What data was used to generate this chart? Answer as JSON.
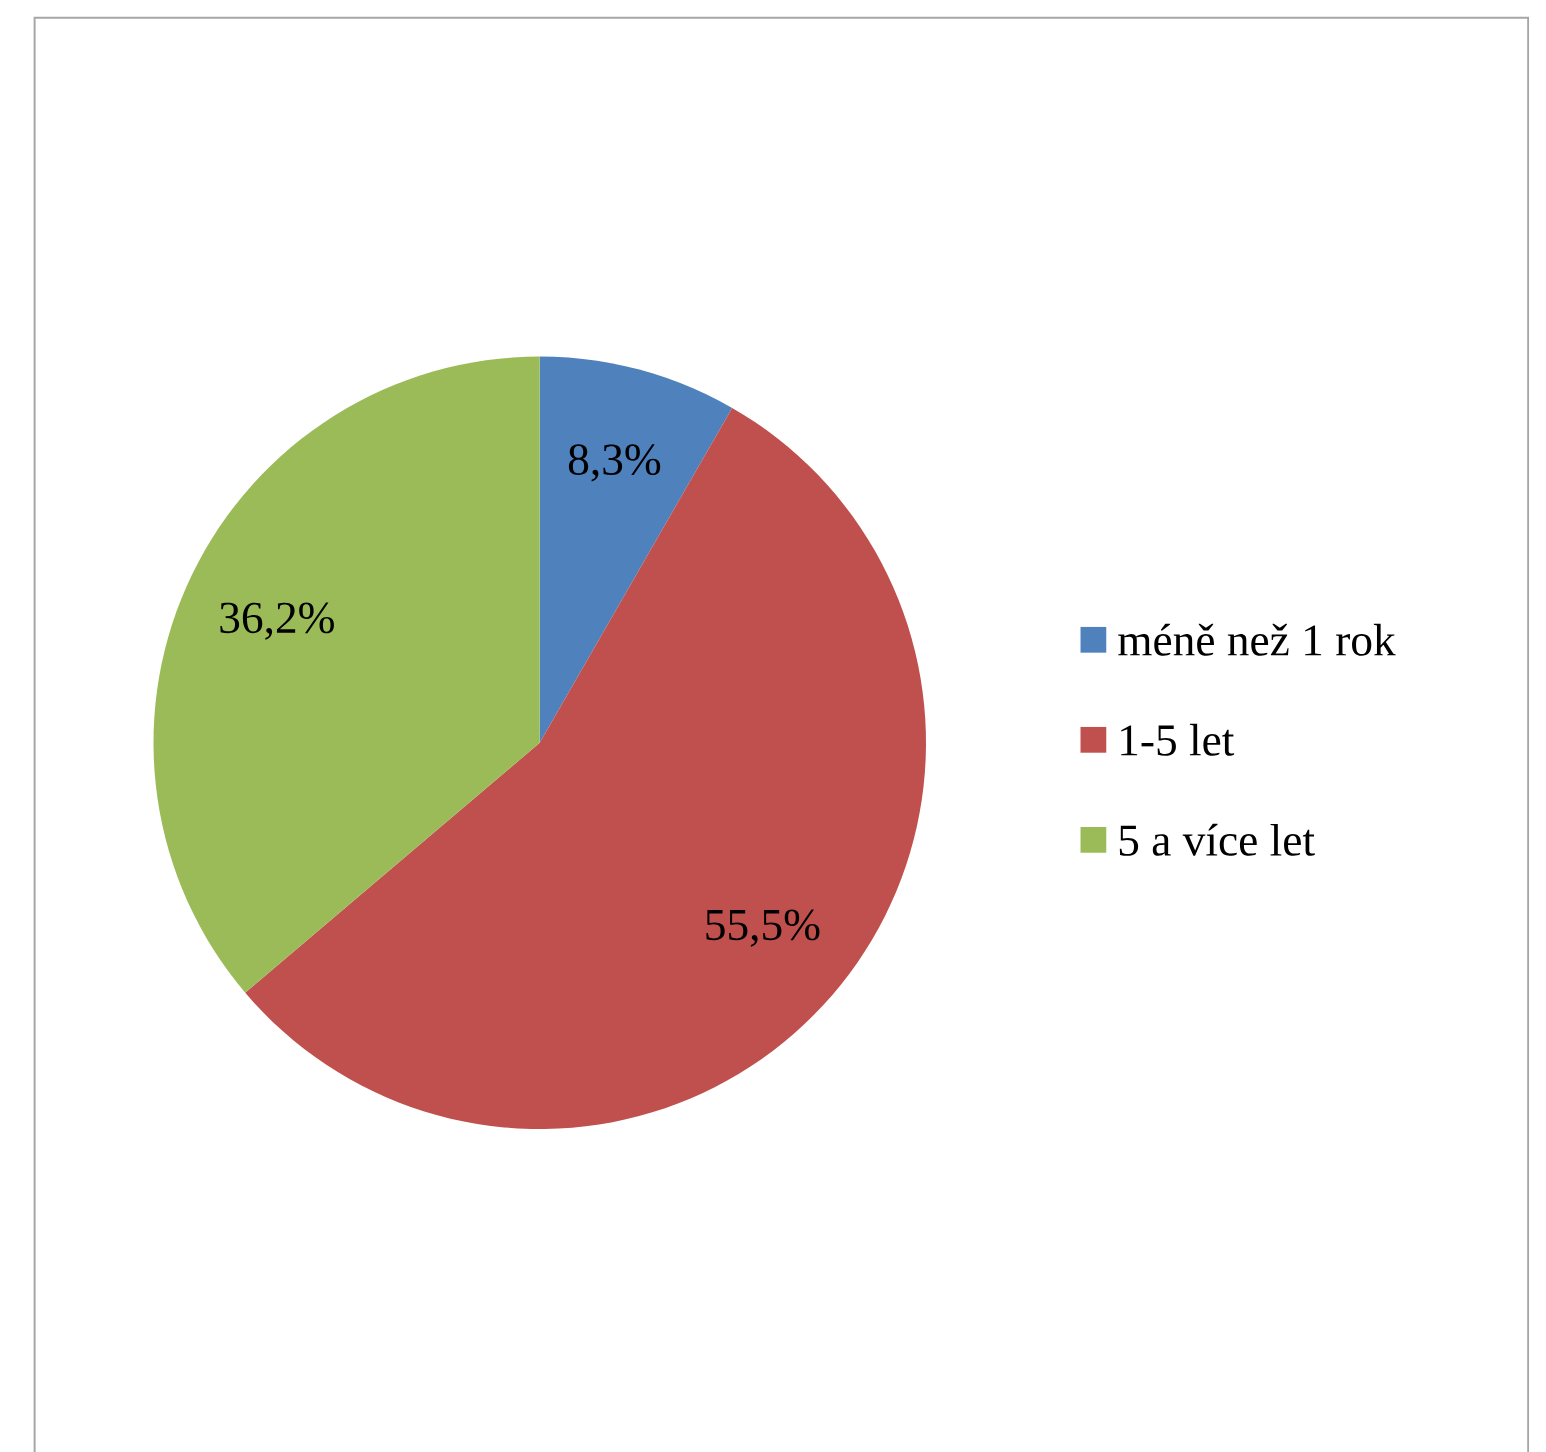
{
  "chart_data": {
    "type": "pie",
    "categories": [
      "méně než 1 rok",
      "1-5 let",
      "5 a více let"
    ],
    "values": [
      8.3,
      55.5,
      36.2
    ],
    "value_labels": [
      "8,3%",
      "55,5%",
      "36,2%"
    ],
    "colors": [
      "#4f81bd",
      "#c0504d",
      "#9bbb59"
    ],
    "legend": "right"
  }
}
